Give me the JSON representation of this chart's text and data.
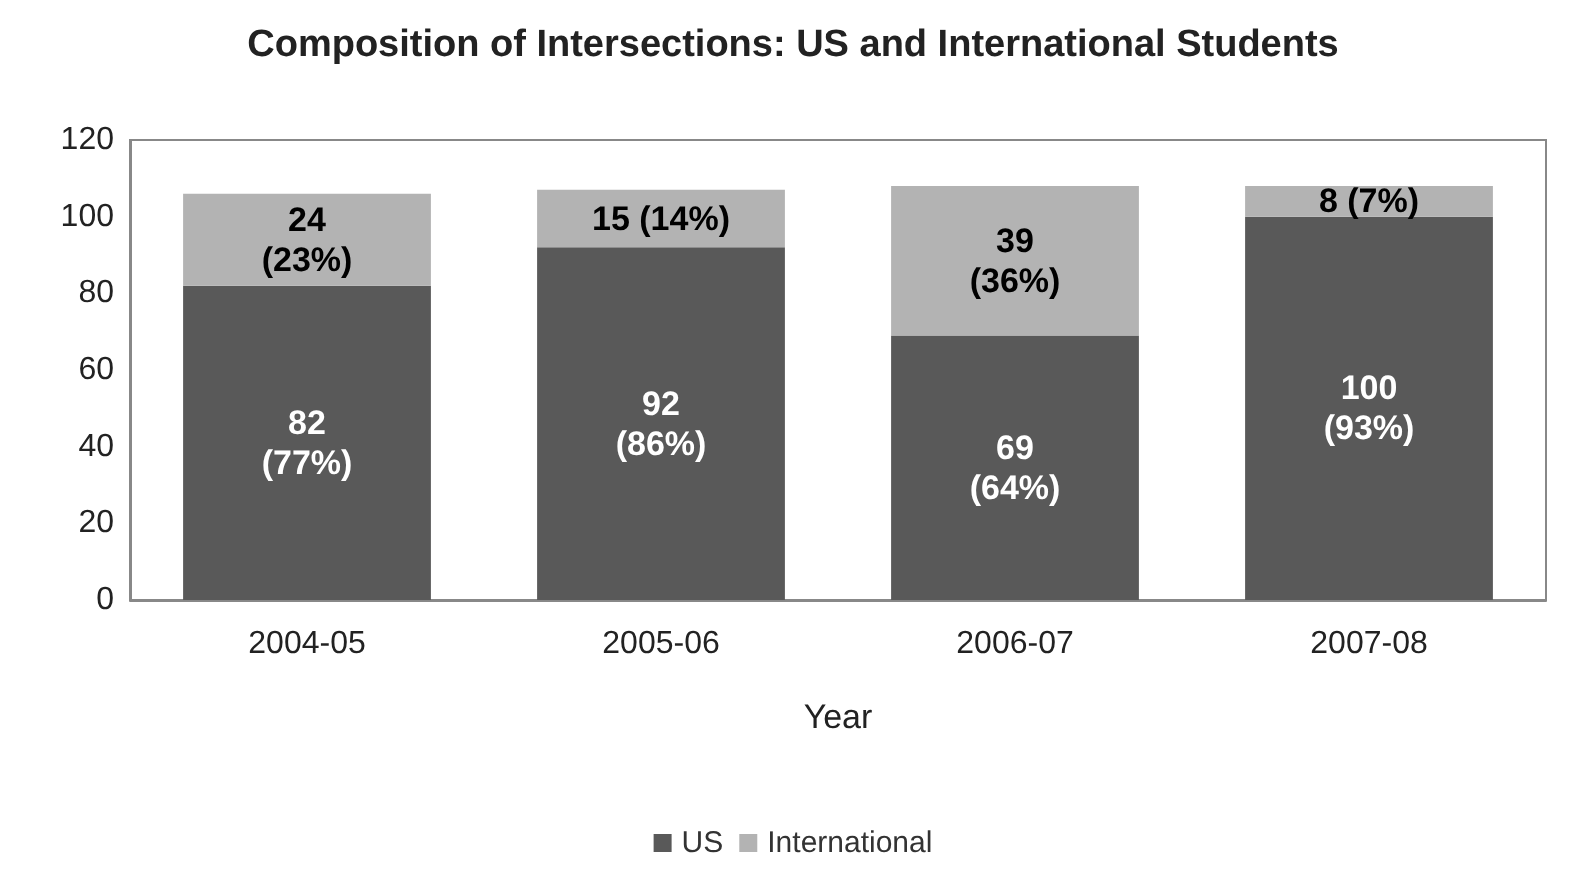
{
  "chart_data": {
    "type": "bar",
    "title": "Composition of Intersections: US and International Students",
    "xlabel": "Year",
    "categories": [
      "2004-05",
      "2005-06",
      "2006-07",
      "2007-08"
    ],
    "stacked": true,
    "series": [
      {
        "name": "US",
        "color": "#595959",
        "values": [
          82,
          92,
          69,
          100
        ],
        "value_labels": [
          "82\n(77%)",
          "92\n(86%)",
          "69\n(64%)",
          "100\n(93%)"
        ]
      },
      {
        "name": "International",
        "color": "#b3b3b3",
        "values": [
          24,
          15,
          39,
          8
        ],
        "value_labels": [
          "24\n(23%)",
          "15 (14%)",
          "39\n(36%)",
          "8 (7%)"
        ]
      }
    ],
    "ylim": [
      0,
      120
    ],
    "yticks": [
      0,
      20,
      40,
      60,
      80,
      100,
      120
    ],
    "grid": false,
    "legend": "bottom"
  }
}
